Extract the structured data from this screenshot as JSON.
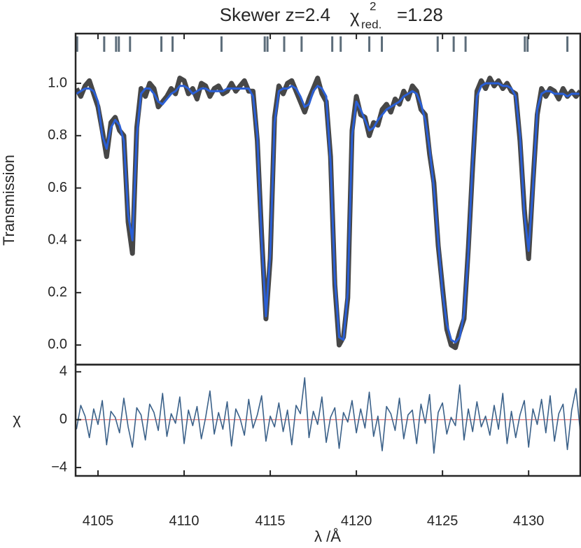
{
  "chart_data": [
    {
      "type": "line",
      "title": "Skewer z=2.4",
      "annotation": {
        "symbol": "χ",
        "sup": "2",
        "sub": "red.",
        "value": "=1.28"
      },
      "ylabel": "Transmission",
      "xlim": [
        4103.7,
        4133
      ],
      "ylim": [
        -0.075,
        1.19
      ],
      "yticks": [
        {
          "value": 0,
          "label": "0.0"
        },
        0.2,
        0.4,
        0.6,
        0.8,
        {
          "value": 1,
          "label": "1.0"
        }
      ],
      "markers": {
        "color": "#5d6d7a",
        "x": [
          4103.79,
          4105.36,
          4106.05,
          4106.21,
          4106.86,
          4108.68,
          4109.33,
          4112.17,
          4114.68,
          4114.84,
          4115.81,
          4116.82,
          4118.6,
          4119.09,
          4120.75,
          4121.48,
          4124.72,
          4125.65,
          4126.34,
          4129.78,
          4129.94,
          4132.25
        ]
      },
      "x": [
        4103.75,
        4104,
        4104.25,
        4104.5,
        4104.75,
        4105,
        4105.25,
        4105.5,
        4105.75,
        4106,
        4106.25,
        4106.5,
        4106.75,
        4107,
        4107.25,
        4107.5,
        4107.75,
        4108,
        4108.25,
        4108.5,
        4108.75,
        4109,
        4109.25,
        4109.5,
        4109.75,
        4110,
        4110.25,
        4110.5,
        4110.75,
        4111,
        4111.25,
        4111.5,
        4111.75,
        4112,
        4112.25,
        4112.5,
        4112.75,
        4113,
        4113.25,
        4113.5,
        4113.75,
        4114,
        4114.25,
        4114.5,
        4114.75,
        4115,
        4115.25,
        4115.5,
        4115.75,
        4116,
        4116.25,
        4116.5,
        4116.75,
        4117,
        4117.25,
        4117.5,
        4117.75,
        4118,
        4118.25,
        4118.5,
        4118.75,
        4119,
        4119.25,
        4119.5,
        4119.75,
        4120,
        4120.25,
        4120.5,
        4120.75,
        4121,
        4121.25,
        4121.5,
        4121.75,
        4122,
        4122.25,
        4122.5,
        4122.75,
        4123,
        4123.25,
        4123.5,
        4123.75,
        4124,
        4124.25,
        4124.5,
        4124.75,
        4125,
        4125.25,
        4125.5,
        4125.75,
        4126,
        4126.25,
        4126.5,
        4126.75,
        4127,
        4127.25,
        4127.5,
        4127.75,
        4128,
        4128.25,
        4128.5,
        4128.75,
        4129,
        4129.25,
        4129.5,
        4129.75,
        4130,
        4130.25,
        4130.5,
        4130.75,
        4131,
        4131.25,
        4131.5,
        4131.75,
        4132,
        4132.25,
        4132.5,
        4132.75,
        4133
      ],
      "series": [
        {
          "color": "#474747",
          "width": 7,
          "values": [
            0.98,
            0.95,
            0.99,
            1.01,
            0.96,
            0.91,
            0.82,
            0.72,
            0.85,
            0.87,
            0.82,
            0.8,
            0.47,
            0.35,
            0.83,
            0.98,
            0.95,
            1.0,
            0.98,
            0.91,
            0.93,
            0.95,
            0.98,
            0.96,
            1.02,
            1.01,
            0.96,
            0.98,
            0.94,
            1.0,
            0.99,
            0.95,
            0.98,
            0.99,
            0.96,
            0.97,
            1.0,
            0.97,
            0.99,
            1.01,
            0.97,
            0.97,
            0.78,
            0.42,
            0.1,
            0.33,
            0.87,
            0.99,
            0.96,
            1.0,
            1.01,
            0.97,
            0.93,
            0.89,
            0.94,
            0.98,
            1.02,
            0.96,
            0.93,
            0.72,
            0.23,
            0.0,
            0.03,
            0.18,
            0.82,
            0.95,
            0.88,
            0.87,
            0.8,
            0.85,
            0.84,
            0.9,
            0.92,
            0.89,
            0.94,
            0.92,
            0.97,
            0.94,
            0.99,
            0.97,
            0.9,
            0.88,
            0.73,
            0.62,
            0.38,
            0.22,
            0.06,
            0.0,
            -0.01,
            0.05,
            0.1,
            0.37,
            0.68,
            0.97,
            1.01,
            0.98,
            1.02,
            0.99,
            1.01,
            0.98,
            1.0,
            0.97,
            0.96,
            0.78,
            0.52,
            0.33,
            0.62,
            0.88,
            0.98,
            0.95,
            0.98,
            0.97,
            0.94,
            0.98,
            0.95,
            0.97,
            0.95,
            0.97
          ]
        },
        {
          "color": "#2a5fd6",
          "width": 3,
          "values": [
            0.96,
            0.97,
            0.98,
            0.98,
            0.97,
            0.93,
            0.8,
            0.75,
            0.83,
            0.86,
            0.84,
            0.78,
            0.5,
            0.4,
            0.8,
            0.96,
            0.98,
            0.98,
            0.96,
            0.93,
            0.92,
            0.94,
            0.96,
            0.97,
            0.99,
            0.99,
            0.98,
            0.96,
            0.97,
            0.98,
            0.98,
            0.97,
            0.97,
            0.97,
            0.97,
            0.98,
            0.98,
            0.98,
            0.98,
            0.98,
            0.98,
            0.95,
            0.8,
            0.4,
            0.11,
            0.35,
            0.85,
            0.97,
            0.98,
            0.98,
            0.99,
            0.98,
            0.95,
            0.91,
            0.92,
            0.97,
            0.99,
            0.98,
            0.95,
            0.7,
            0.25,
            0.03,
            0.02,
            0.2,
            0.8,
            0.93,
            0.9,
            0.86,
            0.82,
            0.83,
            0.86,
            0.88,
            0.9,
            0.91,
            0.92,
            0.93,
            0.95,
            0.96,
            0.97,
            0.96,
            0.92,
            0.86,
            0.75,
            0.6,
            0.4,
            0.2,
            0.08,
            0.02,
            0.01,
            0.03,
            0.12,
            0.35,
            0.7,
            0.95,
            0.99,
            1.0,
            1.0,
            1.0,
            1.0,
            0.99,
            0.99,
            0.98,
            0.95,
            0.8,
            0.5,
            0.36,
            0.6,
            0.9,
            0.96,
            0.97,
            0.97,
            0.96,
            0.96,
            0.96,
            0.95,
            0.96,
            0.96,
            0.96
          ]
        }
      ]
    },
    {
      "type": "line",
      "xlabel": "λ /Å",
      "ylabel": "χ",
      "xlim": [
        4103.7,
        4133
      ],
      "xticks": [
        4105,
        4110,
        4115,
        4120,
        4125,
        4130
      ],
      "ylim": [
        -4.7,
        4.6
      ],
      "yticks": [
        {
          "value": -4,
          "label": "−4"
        },
        0,
        4
      ],
      "reference_line": {
        "value": 0,
        "color": "#e77c7c"
      },
      "series": [
        {
          "color": "#3b6189",
          "width": 1.6,
          "values": [
            -0.8,
            1.2,
            0.3,
            -1.5,
            0.9,
            -0.4,
            1.6,
            -2.1,
            0.7,
            0.2,
            -1.1,
            1.8,
            -0.6,
            -2.3,
            1.0,
            0.4,
            -1.7,
            1.3,
            0.6,
            -0.9,
            2.2,
            -1.4,
            0.5,
            -0.3,
            1.9,
            -2.0,
            0.8,
            -0.5,
            1.1,
            -1.6,
            0.2,
            2.4,
            -1.2,
            0.6,
            -0.8,
            1.5,
            -2.2,
            0.9,
            0.1,
            -1.3,
            1.7,
            -0.7,
            0.4,
            2.0,
            -1.8,
            0.3,
            -0.6,
            1.4,
            -1.0,
            0.8,
            -2.1,
            1.2,
            0.5,
            3.5,
            -1.5,
            0.7,
            -0.4,
            1.9,
            -1.9,
            0.2,
            1.0,
            -2.4,
            0.6,
            -0.2,
            1.6,
            -1.1,
            0.9,
            -0.7,
            2.3,
            -1.4,
            0.3,
            -2.6,
            1.1,
            0.5,
            -0.9,
            1.8,
            -1.6,
            0.4,
            0.8,
            -2.0,
            1.3,
            -0.3,
            2.1,
            -2.8,
            0.6,
            1.4,
            -1.2,
            0.2,
            -0.5,
            2.9,
            -1.7,
            0.9,
            -1.0,
            1.5,
            -0.6,
            0.3,
            -1.3,
            1.2,
            -0.8,
            2.2,
            -2.0,
            0.7,
            -1.5,
            0.4,
            1.6,
            -2.3,
            0.9,
            -0.4,
            1.7,
            -1.1,
            2.0,
            -1.8,
            0.5,
            1.3,
            -2.5,
            0.8,
            2.6,
            -1.0
          ]
        }
      ]
    }
  ]
}
